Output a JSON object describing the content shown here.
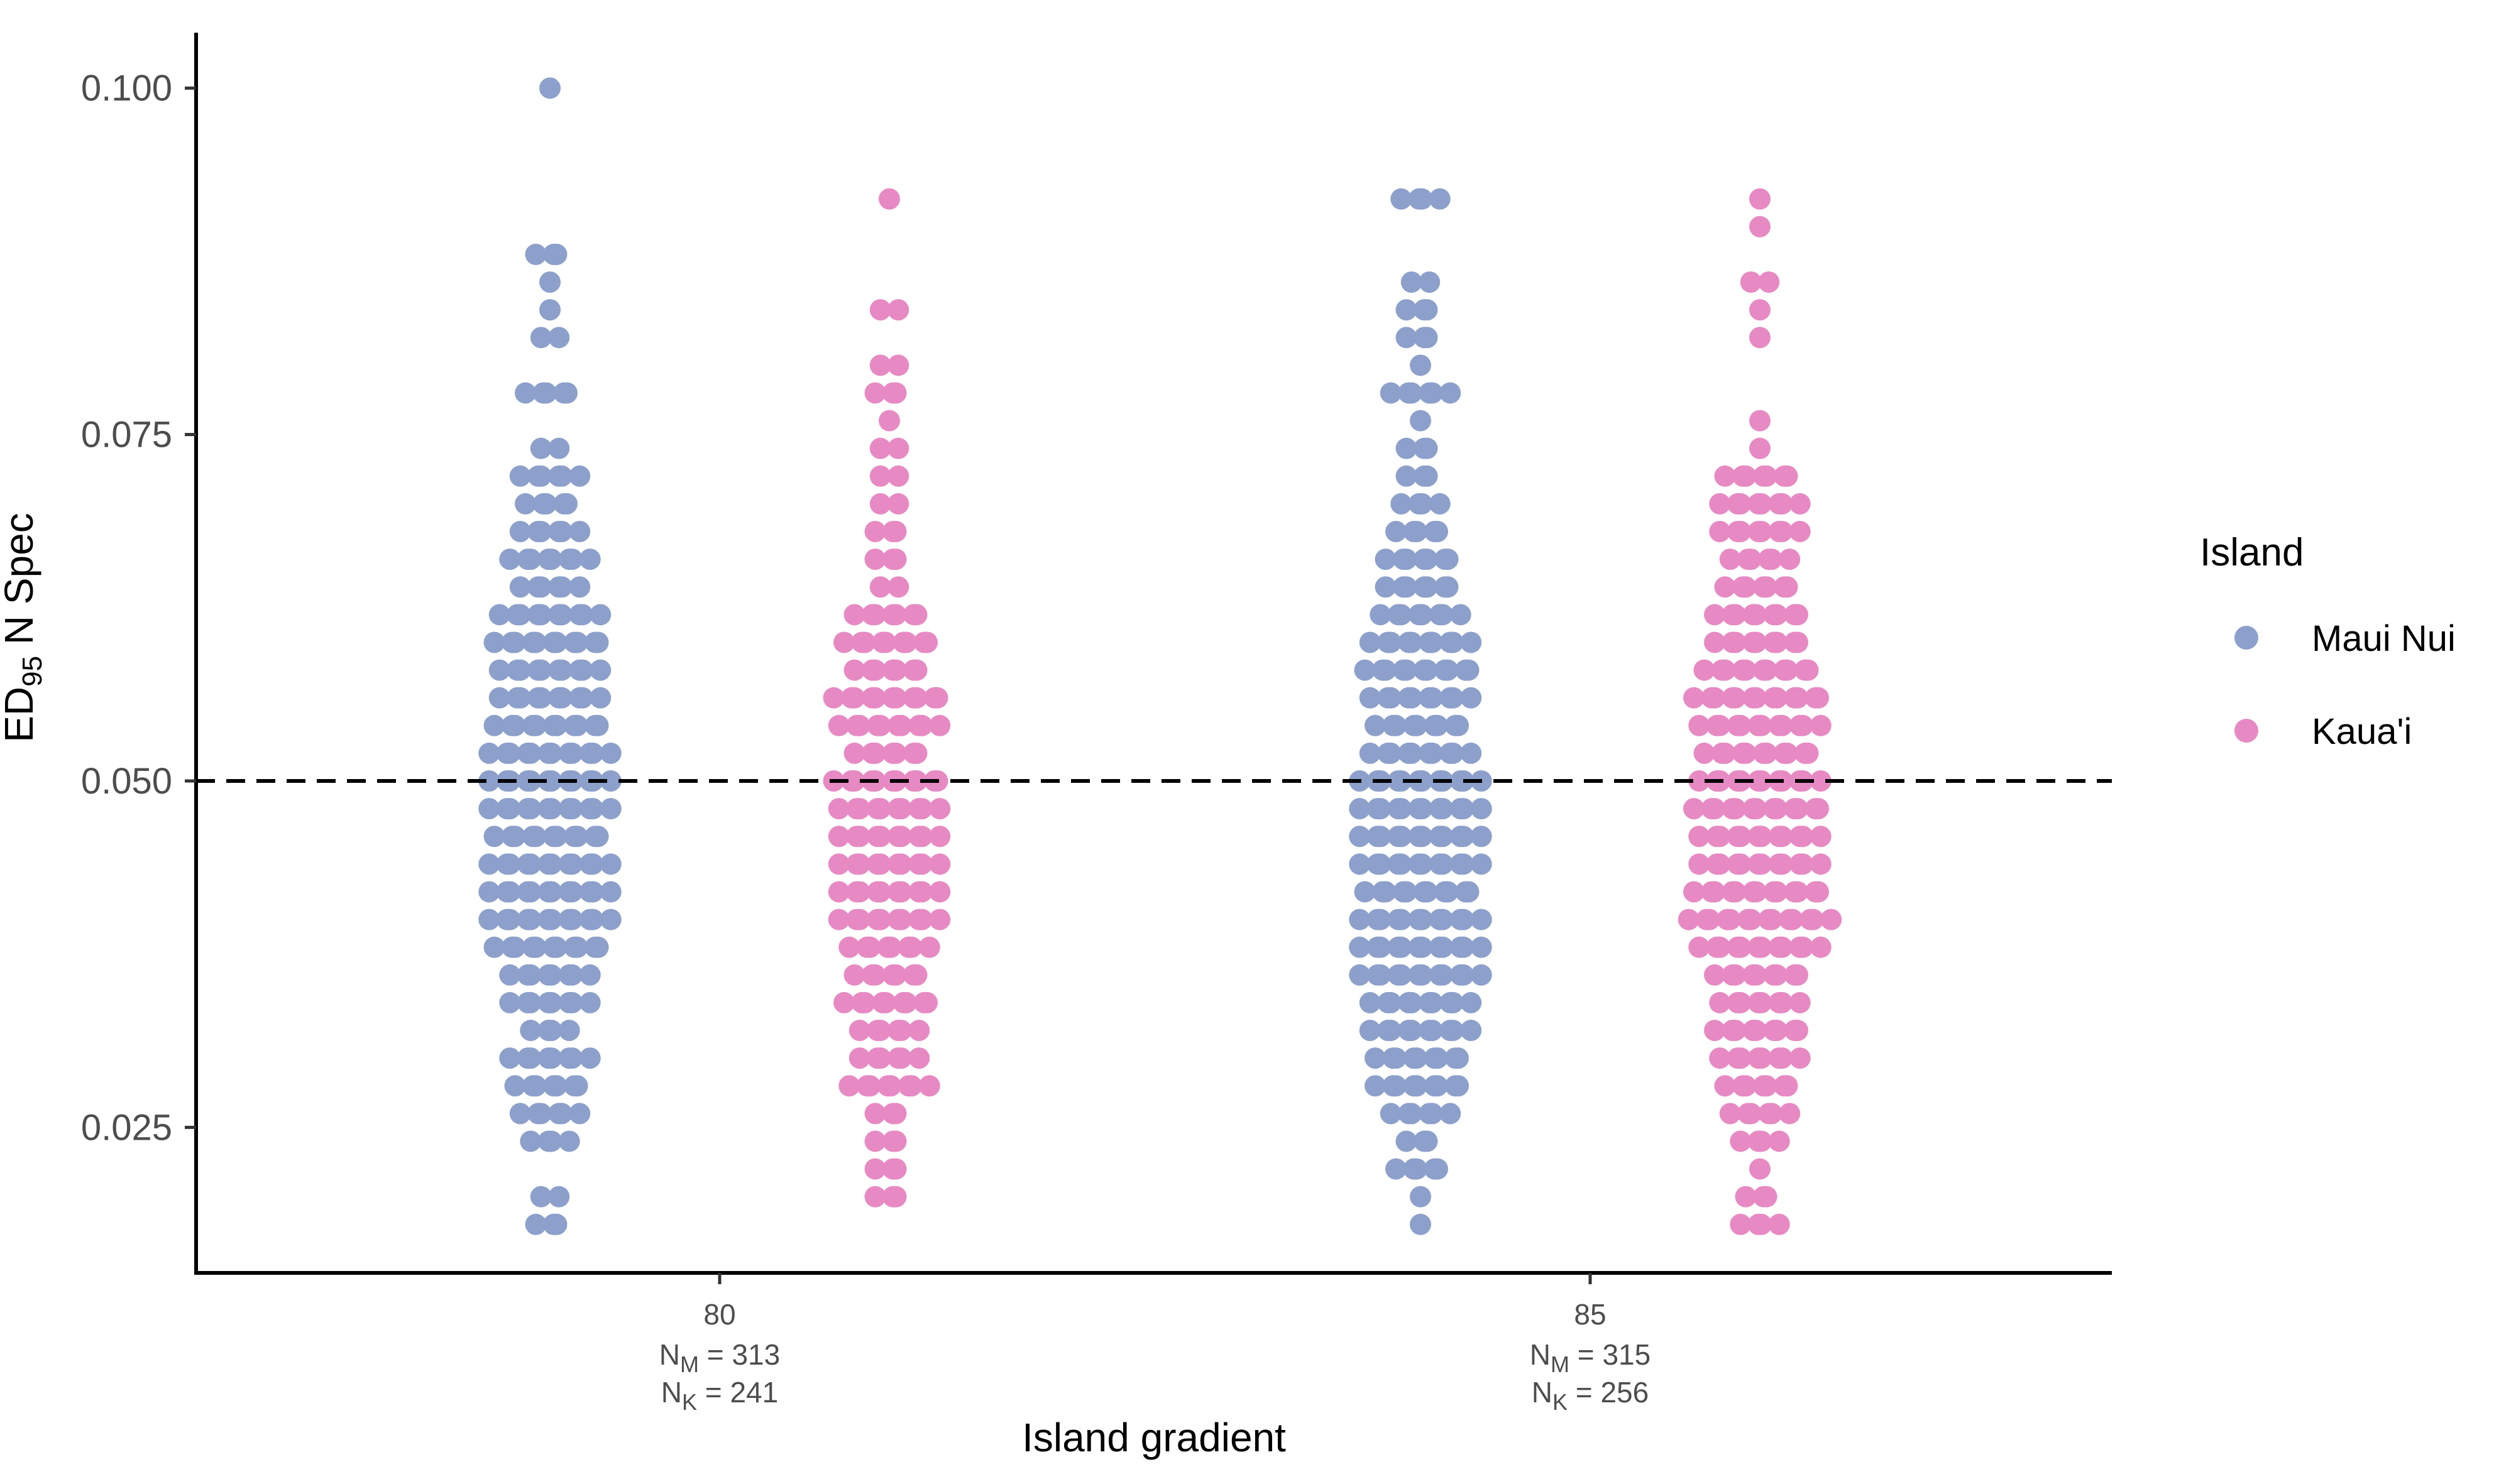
{
  "chart_data": {
    "type": "scatter",
    "subtype": "beeswarm",
    "xlabel": "Island gradient",
    "ylabel": "ED",
    "ylabel_subscript": "95",
    "ylabel_suffix": " N Spec",
    "ylim": [
      0.0145,
      0.104
    ],
    "yticks": [
      {
        "value": 0.025,
        "label": "0.025"
      },
      {
        "value": 0.05,
        "label": "0.050"
      },
      {
        "value": 0.075,
        "label": "0.075"
      },
      {
        "value": 0.1,
        "label": "0.100"
      }
    ],
    "reference_line": {
      "y": 0.05,
      "style": "dashed",
      "color": "#000000"
    },
    "categories": [
      {
        "label": "80",
        "n_lines": [
          {
            "main": "N",
            "sub": "M",
            "rest": " = 313"
          },
          {
            "main": "N",
            "sub": "K",
            "rest": " = 241"
          }
        ]
      },
      {
        "label": "85",
        "n_lines": [
          {
            "main": "N",
            "sub": "M",
            "rest": " = 315"
          },
          {
            "main": "N",
            "sub": "K",
            "rest": " = 256"
          }
        ]
      }
    ],
    "legend": {
      "title": "Island",
      "position": "right"
    },
    "series": [
      {
        "name": "Maui Nui",
        "color": "#8da0cb",
        "groups": [
          {
            "category": "80",
            "values": [
              [
                0.018,
                3
              ],
              [
                0.02,
                2
              ],
              [
                0.024,
                4
              ],
              [
                0.026,
                6
              ],
              [
                0.028,
                7
              ],
              [
                0.03,
                8
              ],
              [
                0.032,
                4
              ],
              [
                0.034,
                8
              ],
              [
                0.036,
                8
              ],
              [
                0.038,
                11
              ],
              [
                0.04,
                12
              ],
              [
                0.042,
                12
              ],
              [
                0.044,
                12
              ],
              [
                0.046,
                11
              ],
              [
                0.048,
                12
              ],
              [
                0.05,
                12
              ],
              [
                0.052,
                12
              ],
              [
                0.054,
                11
              ],
              [
                0.056,
                10
              ],
              [
                0.058,
                10
              ],
              [
                0.06,
                11
              ],
              [
                0.062,
                10
              ],
              [
                0.064,
                6
              ],
              [
                0.066,
                8
              ],
              [
                0.068,
                6
              ],
              [
                0.07,
                5
              ],
              [
                0.072,
                6
              ],
              [
                0.074,
                2
              ],
              [
                0.078,
                5
              ],
              [
                0.082,
                2
              ],
              [
                0.084,
                1
              ],
              [
                0.086,
                1
              ],
              [
                0.088,
                3
              ],
              [
                0.1,
                1
              ]
            ]
          },
          {
            "category": "85",
            "values": [
              [
                0.018,
                1
              ],
              [
                0.02,
                1
              ],
              [
                0.022,
                5
              ],
              [
                0.024,
                3
              ],
              [
                0.026,
                6
              ],
              [
                0.028,
                9
              ],
              [
                0.03,
                9
              ],
              [
                0.032,
                10
              ],
              [
                0.034,
                10
              ],
              [
                0.036,
                12
              ],
              [
                0.038,
                12
              ],
              [
                0.04,
                12
              ],
              [
                0.042,
                11
              ],
              [
                0.044,
                12
              ],
              [
                0.046,
                12
              ],
              [
                0.048,
                12
              ],
              [
                0.05,
                12
              ],
              [
                0.052,
                10
              ],
              [
                0.054,
                9
              ],
              [
                0.056,
                10
              ],
              [
                0.058,
                11
              ],
              [
                0.06,
                10
              ],
              [
                0.062,
                8
              ],
              [
                0.064,
                7
              ],
              [
                0.066,
                7
              ],
              [
                0.068,
                5
              ],
              [
                0.07,
                4
              ],
              [
                0.072,
                3
              ],
              [
                0.074,
                3
              ],
              [
                0.076,
                1
              ],
              [
                0.078,
                6
              ],
              [
                0.08,
                1
              ],
              [
                0.082,
                3
              ],
              [
                0.084,
                3
              ],
              [
                0.086,
                2
              ],
              [
                0.092,
                4
              ]
            ]
          }
        ]
      },
      {
        "name": "Kaua'i",
        "color": "#e78ac3",
        "groups": [
          {
            "category": "80",
            "values": [
              [
                0.02,
                3
              ],
              [
                0.022,
                3
              ],
              [
                0.024,
                3
              ],
              [
                0.026,
                3
              ],
              [
                0.028,
                8
              ],
              [
                0.03,
                6
              ],
              [
                0.032,
                6
              ],
              [
                0.034,
                9
              ],
              [
                0.036,
                7
              ],
              [
                0.038,
                8
              ],
              [
                0.04,
                10
              ],
              [
                0.042,
                10
              ],
              [
                0.044,
                10
              ],
              [
                0.046,
                10
              ],
              [
                0.048,
                10
              ],
              [
                0.05,
                11
              ],
              [
                0.052,
                7
              ],
              [
                0.054,
                10
              ],
              [
                0.056,
                11
              ],
              [
                0.058,
                7
              ],
              [
                0.06,
                9
              ],
              [
                0.062,
                7
              ],
              [
                0.064,
                2
              ],
              [
                0.066,
                3
              ],
              [
                0.068,
                3
              ],
              [
                0.07,
                2
              ],
              [
                0.072,
                2
              ],
              [
                0.074,
                2
              ],
              [
                0.076,
                1
              ],
              [
                0.078,
                3
              ],
              [
                0.08,
                2
              ],
              [
                0.084,
                2
              ],
              [
                0.092,
                1
              ]
            ]
          },
          {
            "category": "85",
            "values": [
              [
                0.018,
                4
              ],
              [
                0.02,
                3
              ],
              [
                0.022,
                1
              ],
              [
                0.024,
                4
              ],
              [
                0.026,
                6
              ],
              [
                0.028,
                7
              ],
              [
                0.03,
                8
              ],
              [
                0.032,
                9
              ],
              [
                0.034,
                8
              ],
              [
                0.036,
                9
              ],
              [
                0.038,
                12
              ],
              [
                0.04,
                14
              ],
              [
                0.042,
                13
              ],
              [
                0.044,
                12
              ],
              [
                0.046,
                12
              ],
              [
                0.048,
                13
              ],
              [
                0.05,
                12
              ],
              [
                0.052,
                11
              ],
              [
                0.054,
                12
              ],
              [
                0.056,
                13
              ],
              [
                0.058,
                11
              ],
              [
                0.06,
                9
              ],
              [
                0.062,
                9
              ],
              [
                0.064,
                7
              ],
              [
                0.066,
                6
              ],
              [
                0.068,
                8
              ],
              [
                0.07,
                8
              ],
              [
                0.072,
                7
              ],
              [
                0.074,
                1
              ],
              [
                0.076,
                1
              ],
              [
                0.082,
                1
              ],
              [
                0.084,
                1
              ],
              [
                0.086,
                2
              ],
              [
                0.09,
                1
              ],
              [
                0.092,
                1
              ]
            ]
          }
        ]
      }
    ]
  }
}
